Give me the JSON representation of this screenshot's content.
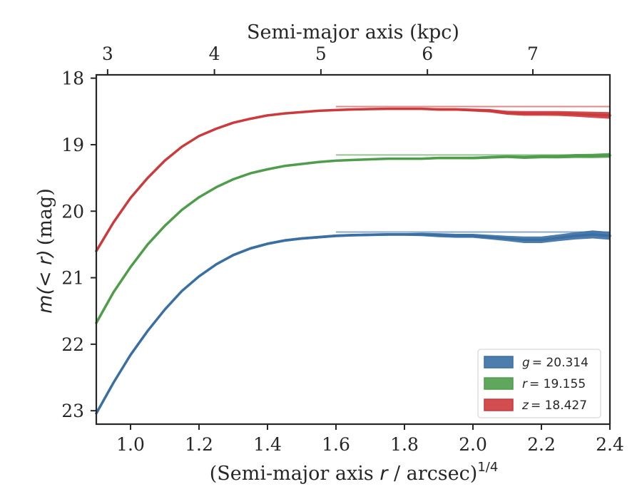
{
  "chart_data": {
    "type": "line",
    "xlabel_bottom_prefix": "(Semi-major axis ",
    "xlabel_bottom_var": "r",
    "xlabel_bottom_suffix": " / arcsec)",
    "xlabel_bottom_exp": "1/4",
    "xlabel_top": "Semi-major axis (kpc)",
    "ylabel_var": "m(< r)",
    "ylabel_unit": "(mag)",
    "xlim": [
      0.9,
      2.4
    ],
    "ylim": [
      23.2,
      17.95
    ],
    "y_inverted": true,
    "xticks": [
      1.0,
      1.2,
      1.4,
      1.6,
      1.8,
      2.0,
      2.2,
      2.4
    ],
    "xtick_labels": [
      "1.0",
      "1.2",
      "1.4",
      "1.6",
      "1.8",
      "2.0",
      "2.2",
      "2.4"
    ],
    "yticks": [
      18,
      19,
      20,
      21,
      22,
      23
    ],
    "ytick_labels": [
      "18",
      "19",
      "20",
      "21",
      "22",
      "23"
    ],
    "top_ticks": [
      {
        "label": "3",
        "x": 0.933
      },
      {
        "label": "4",
        "x": 1.245
      },
      {
        "label": "5",
        "x": 1.556
      },
      {
        "label": "6",
        "x": 1.867
      },
      {
        "label": "7",
        "x": 2.175
      }
    ],
    "grid": false,
    "legend_position": "lower-right",
    "series": [
      {
        "name": "g = 20.314",
        "legend_var": "g",
        "legend_value": "= 20.314",
        "color": "#3a6fa3",
        "asymptote": 20.314,
        "x": [
          0.9,
          0.95,
          1.0,
          1.05,
          1.1,
          1.15,
          1.2,
          1.25,
          1.3,
          1.35,
          1.4,
          1.45,
          1.5,
          1.55,
          1.6,
          1.65,
          1.7,
          1.75,
          1.8,
          1.85,
          1.9,
          1.95,
          2.0,
          2.05,
          2.1,
          2.15,
          2.2,
          2.25,
          2.3,
          2.35,
          2.4
        ],
        "values": [
          23.04,
          22.58,
          22.16,
          21.8,
          21.48,
          21.2,
          20.98,
          20.8,
          20.66,
          20.56,
          20.49,
          20.44,
          20.41,
          20.39,
          20.37,
          20.36,
          20.355,
          20.35,
          20.35,
          20.35,
          20.36,
          20.37,
          20.37,
          20.39,
          20.41,
          20.43,
          20.43,
          20.4,
          20.37,
          20.35,
          20.37
        ],
        "band": [
          0.02,
          0.02,
          0.02,
          0.02,
          0.02,
          0.02,
          0.02,
          0.02,
          0.02,
          0.02,
          0.02,
          0.02,
          0.02,
          0.02,
          0.02,
          0.02,
          0.02,
          0.02,
          0.02,
          0.025,
          0.03,
          0.03,
          0.03,
          0.035,
          0.04,
          0.05,
          0.05,
          0.05,
          0.055,
          0.06,
          0.06
        ]
      },
      {
        "name": "r = 19.155",
        "legend_var": "r",
        "legend_value": "= 19.155",
        "color": "#4e9d4a",
        "asymptote": 19.155,
        "x": [
          0.9,
          0.95,
          1.0,
          1.05,
          1.1,
          1.15,
          1.2,
          1.25,
          1.3,
          1.35,
          1.4,
          1.45,
          1.5,
          1.55,
          1.6,
          1.65,
          1.7,
          1.75,
          1.8,
          1.85,
          1.9,
          1.95,
          2.0,
          2.05,
          2.1,
          2.15,
          2.2,
          2.25,
          2.3,
          2.35,
          2.4
        ],
        "values": [
          21.68,
          21.22,
          20.84,
          20.5,
          20.22,
          19.98,
          19.79,
          19.64,
          19.52,
          19.43,
          19.37,
          19.32,
          19.29,
          19.26,
          19.24,
          19.23,
          19.22,
          19.21,
          19.21,
          19.21,
          19.2,
          19.2,
          19.2,
          19.19,
          19.18,
          19.19,
          19.18,
          19.18,
          19.17,
          19.17,
          19.16
        ],
        "band": [
          0.015,
          0.015,
          0.015,
          0.015,
          0.015,
          0.015,
          0.015,
          0.015,
          0.015,
          0.015,
          0.015,
          0.015,
          0.015,
          0.015,
          0.015,
          0.015,
          0.015,
          0.015,
          0.015,
          0.015,
          0.018,
          0.018,
          0.02,
          0.02,
          0.022,
          0.025,
          0.025,
          0.027,
          0.03,
          0.032,
          0.035
        ]
      },
      {
        "name": "z = 18.427",
        "legend_var": "z",
        "legend_value": "= 18.427",
        "color": "#cc3a3c",
        "asymptote": 18.427,
        "x": [
          0.9,
          0.95,
          1.0,
          1.05,
          1.1,
          1.15,
          1.2,
          1.25,
          1.3,
          1.35,
          1.4,
          1.45,
          1.5,
          1.55,
          1.6,
          1.65,
          1.7,
          1.75,
          1.8,
          1.85,
          1.9,
          1.95,
          2.0,
          2.05,
          2.1,
          2.15,
          2.2,
          2.25,
          2.3,
          2.35,
          2.4
        ],
        "values": [
          20.6,
          20.17,
          19.8,
          19.5,
          19.24,
          19.03,
          18.87,
          18.76,
          18.67,
          18.61,
          18.56,
          18.53,
          18.51,
          18.49,
          18.48,
          18.47,
          18.465,
          18.46,
          18.46,
          18.46,
          18.47,
          18.47,
          18.48,
          18.49,
          18.52,
          18.53,
          18.53,
          18.53,
          18.54,
          18.55,
          18.56
        ],
        "band": [
          0.015,
          0.015,
          0.015,
          0.015,
          0.015,
          0.015,
          0.015,
          0.015,
          0.015,
          0.015,
          0.015,
          0.015,
          0.015,
          0.015,
          0.015,
          0.015,
          0.015,
          0.015,
          0.015,
          0.015,
          0.02,
          0.02,
          0.022,
          0.025,
          0.03,
          0.035,
          0.035,
          0.037,
          0.04,
          0.045,
          0.05
        ]
      }
    ]
  }
}
